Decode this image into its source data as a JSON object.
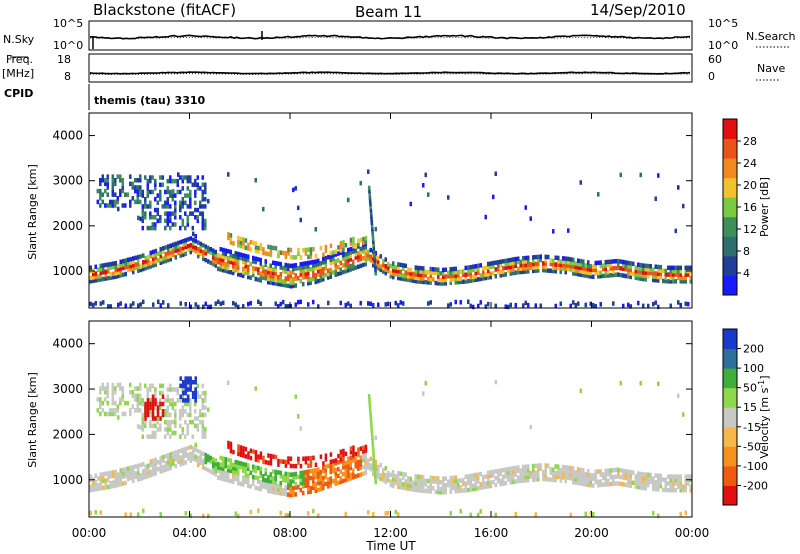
{
  "header": {
    "radar": "Blackstone (fitACF)",
    "beam": "Beam 11",
    "date": "14/Sep/2010"
  },
  "status_panels": {
    "nsky_label": "N.Sky",
    "nsearch_label": "N.Search",
    "power_axis_top": "10^5",
    "power_axis_bottom": "10^0",
    "freq_label_1": "Freq.",
    "freq_label_2": "[MHz]",
    "freq_ticks": [
      "18",
      "8"
    ],
    "nave_label": "Nave",
    "nave_ticks": [
      "60",
      "0"
    ],
    "cpid_label": "CPID",
    "cpid_value": "themis (tau) 3310"
  },
  "colors": {
    "power_scale": [
      "#1a1aff",
      "#1f3f9a",
      "#2e6e6e",
      "#3c8f5a",
      "#7bc843",
      "#f2c12e",
      "#f08a1e",
      "#e8541a",
      "#e01010"
    ],
    "velocity_scale": [
      "#e01010",
      "#f05a10",
      "#f5921e",
      "#f5b84a",
      "#c8c8c4",
      "#8fd84a",
      "#3fae3a",
      "#2e6e9a",
      "#1a3acc"
    ]
  },
  "chart_data": [
    {
      "type": "heatmap",
      "name": "power",
      "ylabel": "Slant Range [km]",
      "xlabel": "Time UT",
      "x_ticks": [
        "00:00",
        "04:00",
        "08:00",
        "12:00",
        "16:00",
        "20:00",
        "00:00"
      ],
      "xlim": [
        0,
        24
      ],
      "y_ticks": [
        "4000",
        "3000",
        "2000",
        "1000"
      ],
      "ylim": [
        180,
        4500
      ],
      "colorbar_label": "Power [dB]",
      "colorbar_ticks": [
        "28",
        "24",
        "20",
        "16",
        "12",
        "8",
        "4"
      ],
      "colorbar_range": [
        0,
        32
      ],
      "main_band": [
        [
          0,
          1000
        ],
        [
          1,
          1100
        ],
        [
          2,
          1250
        ],
        [
          3,
          1450
        ],
        [
          4,
          1650
        ],
        [
          5,
          1350
        ],
        [
          6,
          1200
        ],
        [
          7,
          1050
        ],
        [
          8,
          950
        ],
        [
          9,
          1050
        ],
        [
          10,
          1250
        ],
        [
          11,
          1450
        ],
        [
          12,
          1100
        ],
        [
          13,
          1000
        ],
        [
          14,
          950
        ],
        [
          15,
          1000
        ],
        [
          16,
          1100
        ],
        [
          17,
          1200
        ],
        [
          18,
          1250
        ],
        [
          19,
          1200
        ],
        [
          20,
          1100
        ],
        [
          21,
          1150
        ],
        [
          22,
          1050
        ],
        [
          23,
          1000
        ],
        [
          24,
          1000
        ]
      ]
    },
    {
      "type": "heatmap",
      "name": "velocity",
      "ylabel": "Slant Range [km]",
      "xlabel": "Time UT",
      "x_ticks": [
        "00:00",
        "04:00",
        "08:00",
        "12:00",
        "16:00",
        "20:00",
        "00:00"
      ],
      "xlim": [
        0,
        24
      ],
      "y_ticks": [
        "4000",
        "3000",
        "2000",
        "1000"
      ],
      "ylim": [
        180,
        4500
      ],
      "colorbar_label": "Velocity [m s-1]",
      "colorbar_ticks": [
        "200",
        "100",
        "50",
        "15",
        "-15",
        "-50",
        "-100",
        "-200"
      ],
      "colorbar_range": [
        -250,
        250
      ]
    }
  ],
  "footer": {
    "xlabel": "Time UT"
  }
}
